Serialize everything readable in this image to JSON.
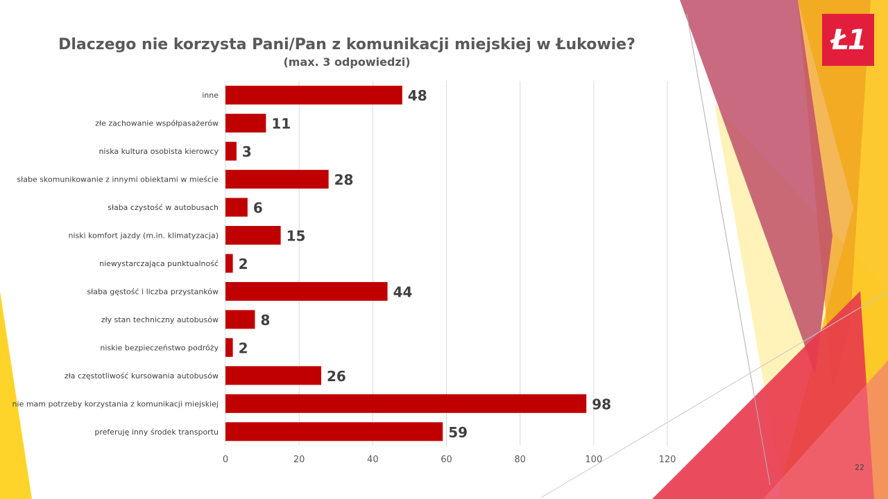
{
  "logo": {
    "text": "Ł1"
  },
  "page_number": "22",
  "chart_data": {
    "type": "bar",
    "orientation": "horizontal",
    "title": "Dlaczego nie korzysta Pani/Pan z komunikacji miejskiej w Łukowie?",
    "subtitle": "(max. 3 odpowiedzi)",
    "xlabel": "",
    "ylabel": "",
    "xlim": [
      0,
      120
    ],
    "ticks": [
      0,
      20,
      40,
      60,
      80,
      100,
      120
    ],
    "grid": true,
    "bar_color": "#c00000",
    "categories": [
      "inne",
      "złe zachowanie współpasażerów",
      "niska kultura osobista kierowcy",
      "słabe skomunikowanie z innymi obiektami w mieście",
      "słaba czystość w autobusach",
      "niski komfort jazdy (m.in. klimatyzacja)",
      "niewystarczająca punktualność",
      "słaba gęstość i liczba przystanków",
      "zły stan techniczny autobusów",
      "niskie bezpieczeństwo podróży",
      "zła częstotliwość kursowania autobusów",
      "nie mam potrzeby korzystania z komunikacji miejskiej",
      "preferuję inny środek transportu"
    ],
    "values": [
      48,
      11,
      3,
      28,
      6,
      15,
      2,
      44,
      8,
      2,
      26,
      98,
      59
    ]
  }
}
